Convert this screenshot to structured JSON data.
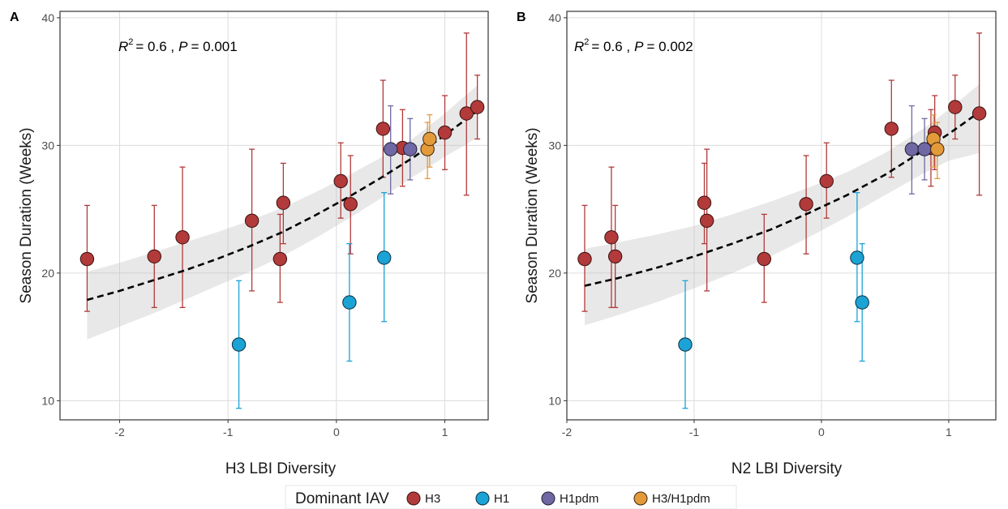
{
  "legend": {
    "title": "Dominant IAV",
    "entries": [
      {
        "label": "H3",
        "color": "#b23a3a"
      },
      {
        "label": "H1",
        "color": "#1ba3d6"
      },
      {
        "label": "H1pdm",
        "color": "#6f68a3"
      },
      {
        "label": "H3/H1pdm",
        "color": "#e39a3b"
      }
    ]
  },
  "chart_data": [
    {
      "type": "scatter",
      "panel_label": "A",
      "annotation": {
        "r2_symbol": "R",
        "r2_sup": "2",
        "r2_value": "= 0.6 ,",
        "p_symbol": "P",
        "p_value": "= 0.001"
      },
      "xlabel": "H3 LBI Diversity",
      "ylabel": "Season Duration (Weeks)",
      "xlim": [
        -2.55,
        1.4
      ],
      "ylim": [
        8.5,
        40.5
      ],
      "xticks": [
        -2,
        -1,
        0,
        1
      ],
      "xtick_labels": [
        "-2",
        "-1",
        "0",
        "1"
      ],
      "yticks": [
        10,
        20,
        30,
        40
      ],
      "ytick_labels": [
        "10",
        "20",
        "30",
        "40"
      ],
      "points": [
        {
          "x": -2.3,
          "y": 21.1,
          "lo": 17.0,
          "hi": 25.3,
          "group": "H3"
        },
        {
          "x": -1.68,
          "y": 21.3,
          "lo": 17.3,
          "hi": 25.3,
          "group": "H3"
        },
        {
          "x": -1.42,
          "y": 22.8,
          "lo": 17.3,
          "hi": 28.3,
          "group": "H3"
        },
        {
          "x": -0.78,
          "y": 24.1,
          "lo": 18.6,
          "hi": 29.7,
          "group": "H3"
        },
        {
          "x": -0.52,
          "y": 21.1,
          "lo": 17.7,
          "hi": 24.6,
          "group": "H3"
        },
        {
          "x": -0.49,
          "y": 25.5,
          "lo": 22.3,
          "hi": 28.6,
          "group": "H3"
        },
        {
          "x": 0.04,
          "y": 27.2,
          "lo": 24.3,
          "hi": 30.2,
          "group": "H3"
        },
        {
          "x": 0.13,
          "y": 25.4,
          "lo": 21.5,
          "hi": 29.2,
          "group": "H3"
        },
        {
          "x": 0.43,
          "y": 31.3,
          "lo": 27.5,
          "hi": 35.1,
          "group": "H3"
        },
        {
          "x": 0.61,
          "y": 29.8,
          "lo": 26.8,
          "hi": 32.8,
          "group": "H3"
        },
        {
          "x": 1.0,
          "y": 31.0,
          "lo": 28.1,
          "hi": 33.9,
          "group": "H3"
        },
        {
          "x": 1.2,
          "y": 32.5,
          "lo": 26.1,
          "hi": 38.8,
          "group": "H3"
        },
        {
          "x": 1.3,
          "y": 33.0,
          "lo": 30.5,
          "hi": 35.5,
          "group": "H3"
        },
        {
          "x": -0.9,
          "y": 14.4,
          "lo": 9.4,
          "hi": 19.4,
          "group": "H1"
        },
        {
          "x": 0.12,
          "y": 17.7,
          "lo": 13.1,
          "hi": 22.3,
          "group": "H1"
        },
        {
          "x": 0.44,
          "y": 21.2,
          "lo": 16.2,
          "hi": 26.3,
          "group": "H1"
        },
        {
          "x": 0.5,
          "y": 29.7,
          "lo": 26.2,
          "hi": 33.1,
          "group": "H1pdm"
        },
        {
          "x": 0.68,
          "y": 29.7,
          "lo": 27.3,
          "hi": 32.1,
          "group": "H1pdm"
        },
        {
          "x": 0.84,
          "y": 29.7,
          "lo": 27.4,
          "hi": 31.8,
          "group": "H3/H1pdm"
        },
        {
          "x": 0.86,
          "y": 30.5,
          "lo": 28.3,
          "hi": 32.4,
          "group": "H3/H1pdm"
        }
      ],
      "fit": {
        "x": [
          -2.3,
          -2.0,
          -1.7,
          -1.4,
          -1.1,
          -0.8,
          -0.5,
          -0.2,
          0.1,
          0.4,
          0.7,
          1.0,
          1.3
        ],
        "y": [
          17.9,
          18.6,
          19.4,
          20.2,
          21.1,
          22.1,
          23.2,
          24.5,
          25.9,
          27.4,
          29.0,
          30.8,
          32.7
        ],
        "lo": [
          14.8,
          15.8,
          16.8,
          17.9,
          19.0,
          20.1,
          21.3,
          22.7,
          24.2,
          25.8,
          27.5,
          29.1,
          30.6
        ],
        "hi": [
          20.1,
          20.8,
          21.6,
          22.4,
          23.2,
          24.1,
          25.1,
          26.3,
          27.6,
          29.0,
          30.5,
          32.5,
          34.7
        ]
      }
    },
    {
      "type": "scatter",
      "panel_label": "B",
      "annotation": {
        "r2_symbol": "R",
        "r2_sup": "2",
        "r2_value": "= 0.6 ,",
        "p_symbol": "P",
        "p_value": "= 0.002"
      },
      "xlabel": "N2 LBI Diversity",
      "ylabel": "Season Duration (Weeks)",
      "xlim": [
        -2.0,
        1.37
      ],
      "ylim": [
        8.5,
        40.5
      ],
      "xticks": [
        -2,
        -1,
        0,
        1
      ],
      "xtick_labels": [
        "-2",
        "-1",
        "0",
        "1"
      ],
      "yticks": [
        10,
        20,
        30,
        40
      ],
      "ytick_labels": [
        "10",
        "20",
        "30",
        "40"
      ],
      "points": [
        {
          "x": -1.86,
          "y": 21.1,
          "lo": 17.0,
          "hi": 25.3,
          "group": "H3"
        },
        {
          "x": -1.65,
          "y": 22.8,
          "lo": 17.3,
          "hi": 28.3,
          "group": "H3"
        },
        {
          "x": -1.62,
          "y": 21.3,
          "lo": 17.3,
          "hi": 25.3,
          "group": "H3"
        },
        {
          "x": -0.92,
          "y": 25.5,
          "lo": 22.3,
          "hi": 28.6,
          "group": "H3"
        },
        {
          "x": -0.9,
          "y": 24.1,
          "lo": 18.6,
          "hi": 29.7,
          "group": "H3"
        },
        {
          "x": -0.45,
          "y": 21.1,
          "lo": 17.7,
          "hi": 24.6,
          "group": "H3"
        },
        {
          "x": -0.12,
          "y": 25.4,
          "lo": 21.5,
          "hi": 29.2,
          "group": "H3"
        },
        {
          "x": 0.04,
          "y": 27.2,
          "lo": 24.3,
          "hi": 30.2,
          "group": "H3"
        },
        {
          "x": 0.55,
          "y": 31.3,
          "lo": 27.5,
          "hi": 35.1,
          "group": "H3"
        },
        {
          "x": 0.86,
          "y": 29.8,
          "lo": 26.8,
          "hi": 32.8,
          "group": "H3"
        },
        {
          "x": 0.89,
          "y": 31.0,
          "lo": 28.1,
          "hi": 33.9,
          "group": "H3"
        },
        {
          "x": 1.05,
          "y": 33.0,
          "lo": 30.5,
          "hi": 35.5,
          "group": "H3"
        },
        {
          "x": 1.24,
          "y": 32.5,
          "lo": 26.1,
          "hi": 38.8,
          "group": "H3"
        },
        {
          "x": -1.07,
          "y": 14.4,
          "lo": 9.4,
          "hi": 19.4,
          "group": "H1"
        },
        {
          "x": 0.28,
          "y": 21.2,
          "lo": 16.2,
          "hi": 26.3,
          "group": "H1"
        },
        {
          "x": 0.32,
          "y": 17.7,
          "lo": 13.1,
          "hi": 22.3,
          "group": "H1"
        },
        {
          "x": 0.71,
          "y": 29.7,
          "lo": 26.2,
          "hi": 33.1,
          "group": "H1pdm"
        },
        {
          "x": 0.81,
          "y": 29.7,
          "lo": 27.3,
          "hi": 32.1,
          "group": "H1pdm"
        },
        {
          "x": 0.88,
          "y": 30.5,
          "lo": 28.3,
          "hi": 32.4,
          "group": "H3/H1pdm"
        },
        {
          "x": 0.91,
          "y": 29.7,
          "lo": 27.4,
          "hi": 31.8,
          "group": "H3/H1pdm"
        }
      ],
      "fit": {
        "x": [
          -1.86,
          -1.6,
          -1.3,
          -1.0,
          -0.7,
          -0.4,
          -0.1,
          0.2,
          0.5,
          0.8,
          1.0,
          1.24
        ],
        "y": [
          19.0,
          19.6,
          20.4,
          21.3,
          22.3,
          23.4,
          24.7,
          26.1,
          27.7,
          29.6,
          30.9,
          32.6
        ],
        "lo": [
          15.9,
          16.7,
          17.7,
          18.8,
          20.0,
          21.3,
          22.8,
          24.4,
          26.1,
          27.8,
          28.8,
          29.4
        ],
        "hi": [
          21.9,
          22.4,
          23.0,
          23.7,
          24.6,
          25.6,
          26.7,
          27.9,
          29.4,
          31.3,
          32.8,
          34.8
        ]
      }
    }
  ]
}
